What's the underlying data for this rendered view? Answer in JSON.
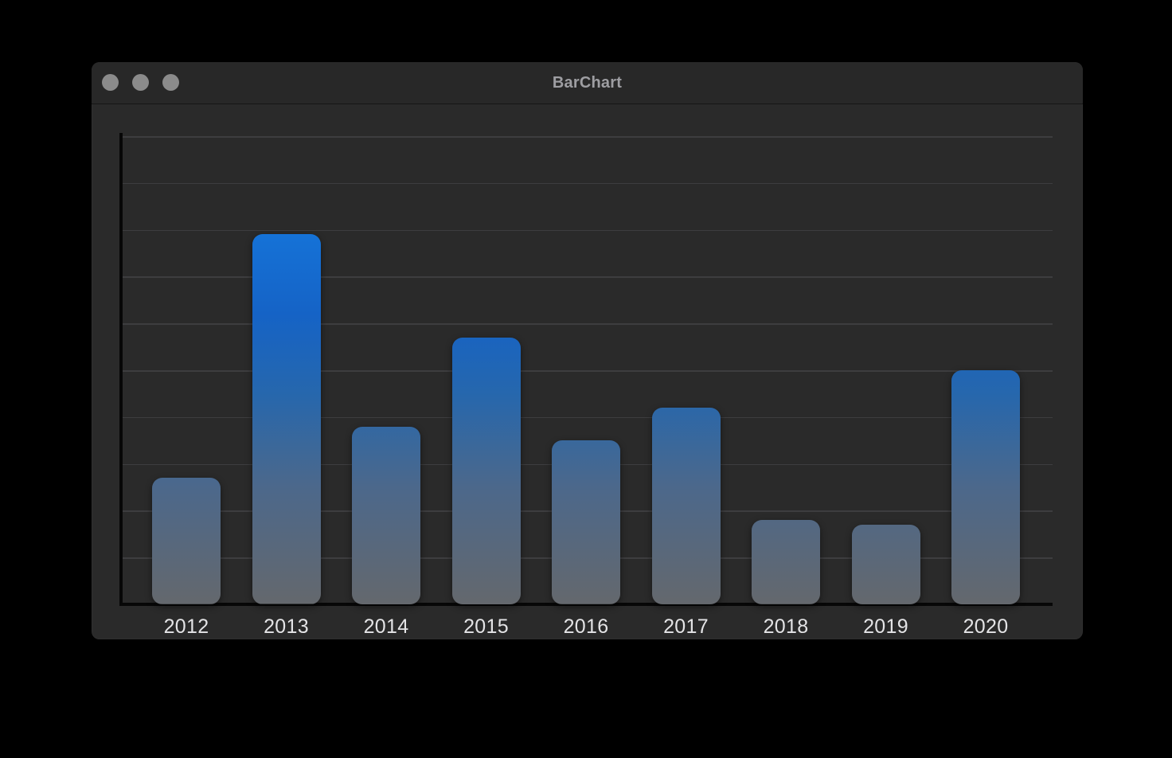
{
  "window": {
    "title": "BarChart",
    "controls": [
      {
        "name": "close-button"
      },
      {
        "name": "minimize-button"
      },
      {
        "name": "zoom-button"
      }
    ]
  },
  "colors": {
    "page_bg": "#000000",
    "window_bg": "#2a2a2a",
    "titlebar_bg": "#282828",
    "title_text": "#9e9ea2",
    "traffic_light": "#8b8b8b",
    "gridline": "#3d3d3f",
    "axis": "#070707",
    "label_text": "#e4e4e6",
    "bar_bottom_gray": "#64686d",
    "bar_top_blue": "#1a82f2",
    "accent_blue": "#1573d8"
  },
  "chart_data": {
    "type": "bar",
    "title": "BarChart",
    "categories": [
      "2012",
      "2013",
      "2014",
      "2015",
      "2016",
      "2017",
      "2018",
      "2019",
      "2020"
    ],
    "values": [
      2.7,
      7.9,
      3.8,
      5.7,
      3.5,
      4.2,
      1.8,
      1.7,
      5.0
    ],
    "xlabel": "",
    "ylabel": "",
    "ylim": [
      0,
      10
    ],
    "gridline_interval": 1,
    "grid": true,
    "legend": false,
    "y_tick_labels_visible": false,
    "bar_gradient_stops": [
      [
        "#64686d",
        0
      ],
      [
        "#4c688b",
        25
      ],
      [
        "#2667ad",
        45
      ],
      [
        "#1563c6",
        62
      ],
      [
        "#1573d8",
        80
      ],
      [
        "#1a82f2",
        100
      ]
    ]
  }
}
